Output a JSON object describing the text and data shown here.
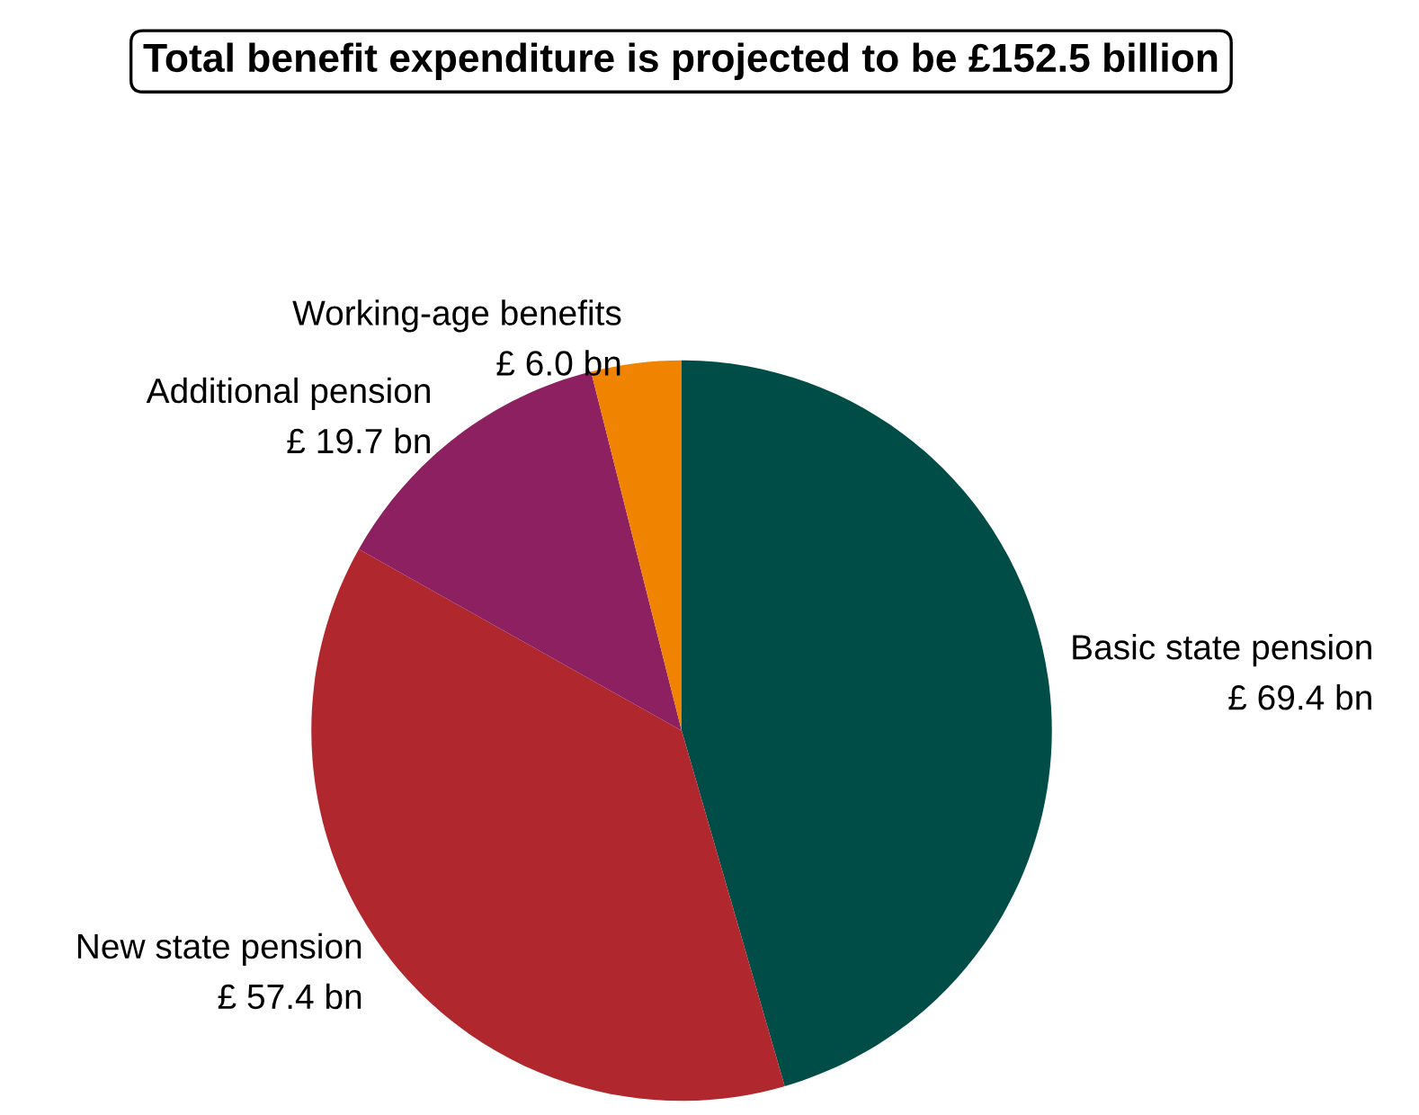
{
  "chart_data": {
    "type": "pie",
    "title": "Total benefit expenditure is projected to be £152.5 billion",
    "categories": [
      "Basic state pension",
      "New state pension",
      "Additional pension",
      "Working-age benefits"
    ],
    "values": [
      69.4,
      57.4,
      19.7,
      6.0
    ],
    "colors": [
      "#004d47",
      "#b0282e",
      "#8c2060",
      "#f08300"
    ],
    "value_labels": [
      "£ 69.4 bn",
      "£ 57.4 bn",
      "£ 19.7 bn",
      "£ 6.0 bn"
    ],
    "legend": false
  }
}
